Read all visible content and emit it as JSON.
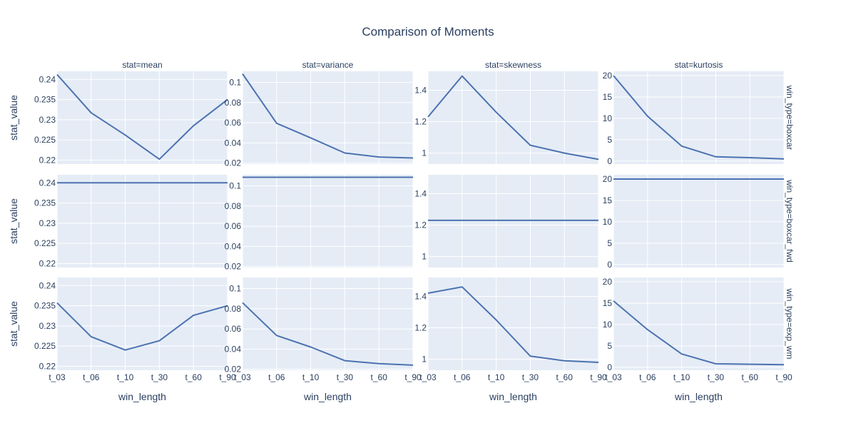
{
  "chart_data": {
    "type": "line",
    "title": "Comparison of Moments",
    "x_categories": [
      "t_03",
      "t_06",
      "t_10",
      "t_30",
      "t_60",
      "t_90"
    ],
    "xlabel": "win_length",
    "ylabel": "stat_value",
    "grid": true,
    "series_color": "#4c72b0",
    "columns": [
      {
        "title": "stat=mean",
        "key": "mean",
        "ylim": [
          0.219,
          0.242
        ],
        "yticks": [
          0.22,
          0.225,
          0.23,
          0.235,
          0.24
        ],
        "tick_labels": [
          "0.22",
          "0.225",
          "0.23",
          "0.235",
          "0.24"
        ]
      },
      {
        "title": "stat=variance",
        "key": "variance",
        "ylim": [
          0.019,
          0.111
        ],
        "yticks": [
          0.02,
          0.04,
          0.06,
          0.08,
          0.1
        ],
        "tick_labels": [
          "0.02",
          "0.04",
          "0.06",
          "0.08",
          "0.1"
        ]
      },
      {
        "title": "stat=skewness",
        "key": "skewness",
        "ylim": [
          0.93,
          1.52
        ],
        "yticks": [
          1,
          1.2,
          1.4
        ],
        "tick_labels": [
          "1",
          "1.2",
          "1.4"
        ]
      },
      {
        "title": "stat=kurtosis",
        "key": "kurtosis",
        "ylim": [
          -0.7,
          21
        ],
        "yticks": [
          0,
          5,
          10,
          15,
          20
        ],
        "tick_labels": [
          "0",
          "5",
          "10",
          "15",
          "20"
        ]
      }
    ],
    "rows": [
      {
        "title": "win_type=boxcar",
        "values": {
          "mean": [
            0.2412,
            0.2317,
            0.2262,
            0.2202,
            0.2285,
            0.235
          ],
          "variance": [
            0.1085,
            0.0595,
            0.045,
            0.03,
            0.026,
            0.025
          ],
          "skewness": [
            1.23,
            1.49,
            1.26,
            1.05,
            1.0,
            0.96
          ],
          "kurtosis": [
            20.0,
            10.5,
            3.5,
            1.0,
            0.8,
            0.5
          ]
        }
      },
      {
        "title": "win_type=boxcar_fwd",
        "values": {
          "mean": [
            0.24,
            0.24,
            0.24,
            0.24,
            0.24,
            0.24
          ],
          "variance": [
            0.1085,
            0.1085,
            0.1085,
            0.1085,
            0.1085,
            0.1085
          ],
          "skewness": [
            1.23,
            1.23,
            1.23,
            1.23,
            1.23,
            1.23
          ],
          "kurtosis": [
            20.0,
            20.0,
            20.0,
            20.0,
            20.0,
            20.0
          ]
        }
      },
      {
        "title": "win_type=exp_wm",
        "values": {
          "mean": [
            0.2357,
            0.2273,
            0.224,
            0.2263,
            0.2326,
            0.235
          ],
          "variance": [
            0.086,
            0.0535,
            0.042,
            0.0285,
            0.0255,
            0.024
          ],
          "skewness": [
            1.42,
            1.46,
            1.25,
            1.02,
            0.99,
            0.98
          ],
          "kurtosis": [
            15.5,
            8.8,
            3.1,
            0.8,
            0.7,
            0.6
          ]
        }
      }
    ]
  }
}
